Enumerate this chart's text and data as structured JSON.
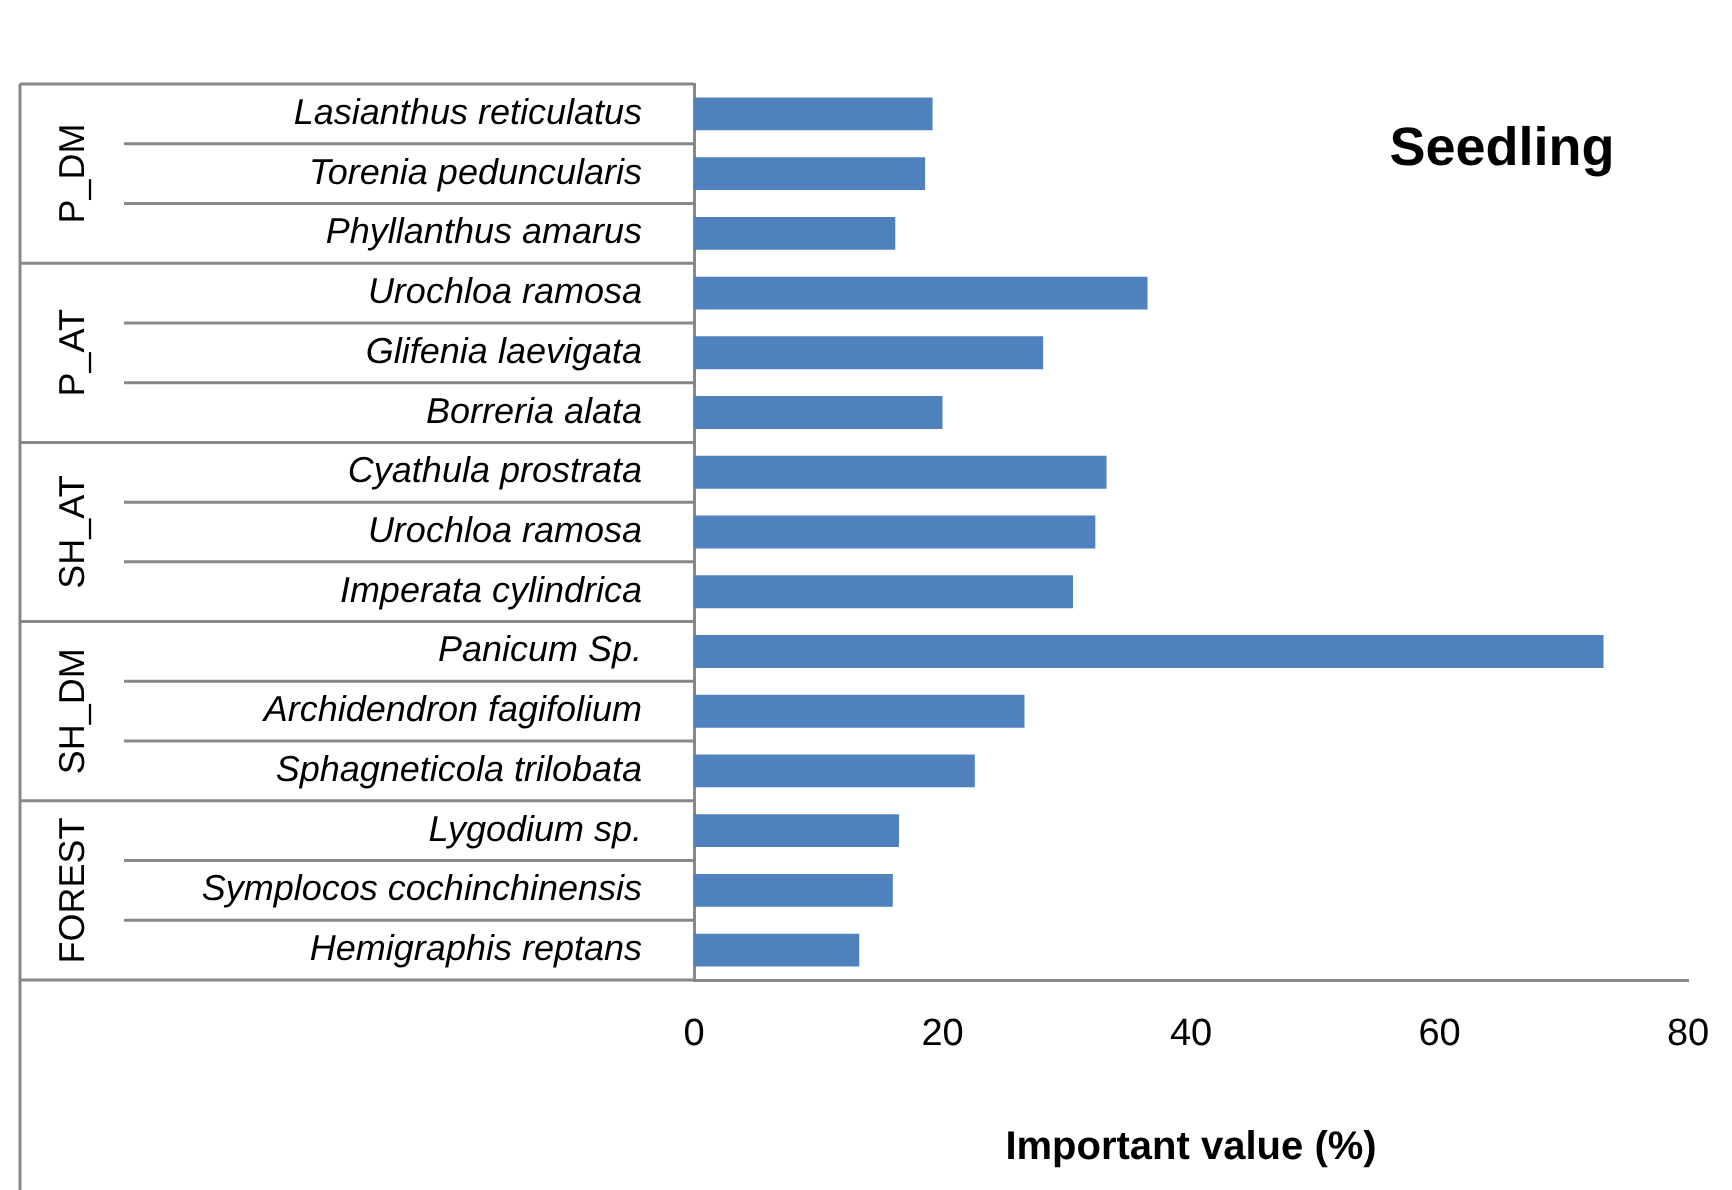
{
  "chart_data": {
    "type": "bar",
    "orientation": "horizontal",
    "title": "Seedling",
    "xlabel": "Important value (%)",
    "categories": [
      "Lasianthus reticulatus",
      "Torenia peduncularis",
      "Phyllanthus amarus",
      "Urochloa ramosa",
      "Glifenia laevigata",
      "Borreria alata",
      "Cyathula prostrata",
      "Urochloa ramosa",
      "Imperata cylindrica",
      "Panicum Sp.",
      "Archidendron fagifolium",
      "Sphagneticola trilobata",
      "Lygodium sp.",
      "Symplocos cochinchinensis",
      "Hemigraphis reptans"
    ],
    "values": [
      19.2,
      18.6,
      16.2,
      36.5,
      28.1,
      20.0,
      33.2,
      32.3,
      30.5,
      73.2,
      26.6,
      22.6,
      16.5,
      16.0,
      13.3
    ],
    "color": "#4f81bd",
    "xlim": [
      0,
      80
    ],
    "xticks": [
      0,
      20,
      40,
      60,
      80
    ],
    "grid": false,
    "annotations": [
      "P_DM",
      "P_AT",
      "SH_AT",
      "SH_DM",
      "FOREST"
    ]
  }
}
